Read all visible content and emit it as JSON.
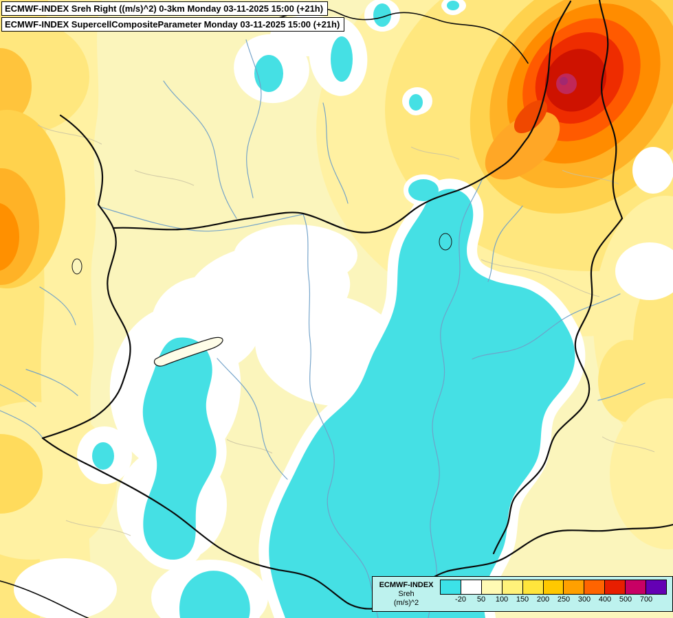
{
  "header": {
    "line1": "ECMWF-INDEX Sreh Right ((m/s)^2) 0-3km Monday 03-11-2025 15:00 (+21h)",
    "line2": "ECMWF-INDEX SupercellCompositeParameter Monday 03-11-2025 15:00 (+21h)"
  },
  "legend": {
    "product": "ECMWF-INDEX",
    "parameter": "Sreh",
    "units": "(m/s)^2",
    "tick_labels": [
      "-20",
      "50",
      "100",
      "150",
      "200",
      "250",
      "300",
      "400",
      "500",
      "700"
    ],
    "colors": [
      "#3CE2E8",
      "#FFFFFF",
      "#FFFAB4",
      "#FFF27A",
      "#FFE53C",
      "#FFC800",
      "#FFA000",
      "#FF6400",
      "#E81E00",
      "#C80064",
      "#6400B4"
    ],
    "background": "#BDF2EE"
  },
  "map": {
    "palette": {
      "base_yellow": "#FBF5BC",
      "pale_yellow_wash": "#FFF1A2",
      "yellow_wash": "#FFE77E",
      "golden": "#FFD24D",
      "orange": "#FFB226",
      "deep_orange": "#FF8C00",
      "red_orange": "#FF5A00",
      "red": "#EE2C00",
      "dark_red": "#CE1200",
      "magenta_spot": "#C02858",
      "purple_spot": "#A22870",
      "cyan": "#45E0E4",
      "white_zone": "#FFFFFF",
      "border_color": "#0A0A0A",
      "river_color": "#6FA0C8",
      "contour_gray": "#C9C2A2"
    }
  }
}
